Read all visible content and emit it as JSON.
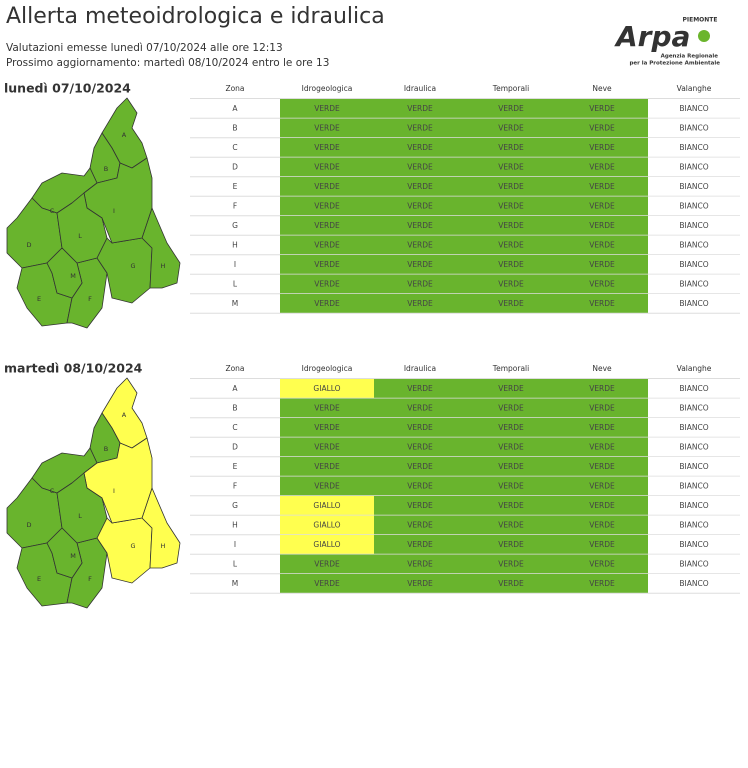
{
  "header": {
    "title": "Allerta meteoidrologica e idraulica",
    "issued": "Valutazioni emesse lunedì 07/10/2024 alle ore 12:13",
    "next_update": "Prossimo aggiornamento: martedì 08/10/2024 entro le ore 13"
  },
  "logo": {
    "region": "PIEMONTE",
    "brand": "Arpa",
    "agency_1": "Agenzia Regionale",
    "agency_2": "per la Protezione Ambientale"
  },
  "levels": [
    {
      "name": "BIANCO",
      "color": "#ffffff"
    },
    {
      "name": "VERDE",
      "color": "#69b42d"
    },
    {
      "name": "GIALLO",
      "color": "#ffff4f"
    }
  ],
  "days": [
    {
      "date": "lunedì 07/10/2024",
      "columns": [
        "Zona",
        "Idrogeologica",
        "Idraulica",
        "Temporali",
        "Neve",
        "Valanghe"
      ],
      "rows": [
        [
          "A",
          "VERDE",
          "VERDE",
          "VERDE",
          "VERDE",
          "BIANCO"
        ],
        [
          "B",
          "VERDE",
          "VERDE",
          "VERDE",
          "VERDE",
          "BIANCO"
        ],
        [
          "C",
          "VERDE",
          "VERDE",
          "VERDE",
          "VERDE",
          "BIANCO"
        ],
        [
          "D",
          "VERDE",
          "VERDE",
          "VERDE",
          "VERDE",
          "BIANCO"
        ],
        [
          "E",
          "VERDE",
          "VERDE",
          "VERDE",
          "VERDE",
          "BIANCO"
        ],
        [
          "F",
          "VERDE",
          "VERDE",
          "VERDE",
          "VERDE",
          "BIANCO"
        ],
        [
          "G",
          "VERDE",
          "VERDE",
          "VERDE",
          "VERDE",
          "BIANCO"
        ],
        [
          "H",
          "VERDE",
          "VERDE",
          "VERDE",
          "VERDE",
          "BIANCO"
        ],
        [
          "I",
          "VERDE",
          "VERDE",
          "VERDE",
          "VERDE",
          "BIANCO"
        ],
        [
          "L",
          "VERDE",
          "VERDE",
          "VERDE",
          "VERDE",
          "BIANCO"
        ],
        [
          "M",
          "VERDE",
          "VERDE",
          "VERDE",
          "VERDE",
          "BIANCO"
        ]
      ]
    },
    {
      "date": "martedì 08/10/2024",
      "columns": [
        "Zona",
        "Idrogeologica",
        "Idraulica",
        "Temporali",
        "Neve",
        "Valanghe"
      ],
      "rows": [
        [
          "A",
          "GIALLO",
          "VERDE",
          "VERDE",
          "VERDE",
          "BIANCO"
        ],
        [
          "B",
          "VERDE",
          "VERDE",
          "VERDE",
          "VERDE",
          "BIANCO"
        ],
        [
          "C",
          "VERDE",
          "VERDE",
          "VERDE",
          "VERDE",
          "BIANCO"
        ],
        [
          "D",
          "VERDE",
          "VERDE",
          "VERDE",
          "VERDE",
          "BIANCO"
        ],
        [
          "E",
          "VERDE",
          "VERDE",
          "VERDE",
          "VERDE",
          "BIANCO"
        ],
        [
          "F",
          "VERDE",
          "VERDE",
          "VERDE",
          "VERDE",
          "BIANCO"
        ],
        [
          "G",
          "GIALLO",
          "VERDE",
          "VERDE",
          "VERDE",
          "BIANCO"
        ],
        [
          "H",
          "GIALLO",
          "VERDE",
          "VERDE",
          "VERDE",
          "BIANCO"
        ],
        [
          "I",
          "GIALLO",
          "VERDE",
          "VERDE",
          "VERDE",
          "BIANCO"
        ],
        [
          "L",
          "VERDE",
          "VERDE",
          "VERDE",
          "VERDE",
          "BIANCO"
        ],
        [
          "M",
          "VERDE",
          "VERDE",
          "VERDE",
          "VERDE",
          "BIANCO"
        ]
      ]
    }
  ]
}
